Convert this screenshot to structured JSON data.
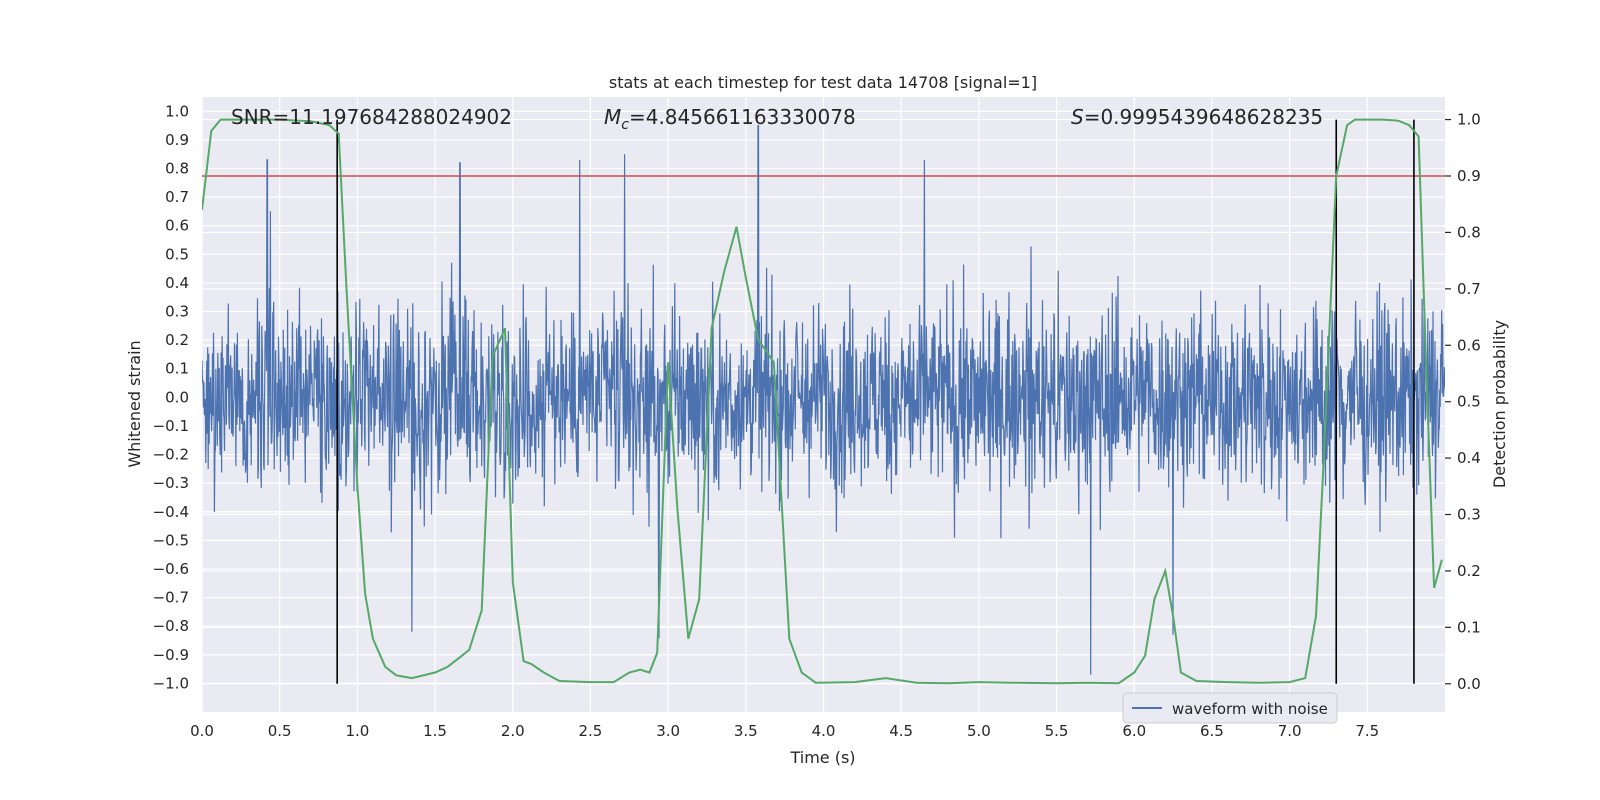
{
  "chart_data": {
    "type": "line",
    "title": "stats at each timestep for test data 14708 [signal=1]",
    "xlabel": "Time (s)",
    "ylabel": "Whitened strain",
    "y2label": "Detection probability",
    "xlim": [
      0.0,
      8.0
    ],
    "ylim": [
      -1.1,
      1.05
    ],
    "y2lim": [
      -0.05,
      1.04
    ],
    "x_ticks": [
      0.0,
      0.5,
      1.0,
      1.5,
      2.0,
      2.5,
      3.0,
      3.5,
      4.0,
      4.5,
      5.0,
      5.5,
      6.0,
      6.5,
      7.0,
      7.5
    ],
    "x_tick_labels": [
      "0.0",
      "0.5",
      "1.0",
      "1.5",
      "2.0",
      "2.5",
      "3.0",
      "3.5",
      "4.0",
      "4.5",
      "5.0",
      "5.5",
      "6.0",
      "6.5",
      "7.0",
      "7.5"
    ],
    "y_ticks": [
      1.0,
      0.9,
      0.8,
      0.7,
      0.6,
      0.5,
      0.4,
      0.3,
      0.2,
      0.1,
      0.0,
      -0.1,
      -0.2,
      -0.3,
      -0.4,
      -0.5,
      -0.6,
      -0.7,
      -0.8,
      -0.9,
      -1.0
    ],
    "y_tick_labels": [
      "1.0",
      "0.9",
      "0.8",
      "0.7",
      "0.6",
      "0.5",
      "0.4",
      "0.3",
      "0.2",
      "0.1",
      "0.0",
      "−0.1",
      "−0.2",
      "−0.3",
      "−0.4",
      "−0.5",
      "−0.6",
      "−0.7",
      "−0.8",
      "−0.9",
      "−1.0"
    ],
    "y2_ticks": [
      1.0,
      0.9,
      0.8,
      0.7,
      0.6,
      0.5,
      0.4,
      0.3,
      0.2,
      0.1,
      0.0
    ],
    "y2_tick_labels": [
      "1.0",
      "0.9",
      "0.8",
      "0.7",
      "0.6",
      "0.5",
      "0.4",
      "0.3",
      "0.2",
      "0.1",
      "0.0"
    ],
    "grid": true,
    "legend_position": "lower-right",
    "annotations": {
      "snr": "SNR=11.197684288024902",
      "mc_symbol": "M",
      "mc_subscript": "c",
      "mc_value": "=4.845661163330078",
      "s_symbol": "S",
      "s_value": "=0.9995439648628235"
    },
    "series": [
      {
        "name": "waveform with noise",
        "axis": "left",
        "color": "#4c72b0",
        "style": "dense noise",
        "envelope_typical": [
          -0.42,
          0.43
        ],
        "peaks": [
          {
            "x": 0.42,
            "y": 0.83
          },
          {
            "x": 1.66,
            "y": 0.82
          },
          {
            "x": 2.43,
            "y": 0.83
          },
          {
            "x": 2.72,
            "y": 0.85
          },
          {
            "x": 3.58,
            "y": 0.95
          },
          {
            "x": 4.65,
            "y": 0.83
          },
          {
            "x": 1.35,
            "y": -0.82
          },
          {
            "x": 2.94,
            "y": -0.84
          },
          {
            "x": 5.72,
            "y": -0.97
          },
          {
            "x": 6.25,
            "y": -0.83
          }
        ]
      },
      {
        "name": "detection probability",
        "axis": "right",
        "color": "#55a868",
        "x": [
          0.0,
          0.06,
          0.12,
          0.3,
          0.5,
          0.7,
          0.82,
          0.88,
          0.93,
          1.0,
          1.05,
          1.1,
          1.18,
          1.25,
          1.35,
          1.5,
          1.58,
          1.65,
          1.72,
          1.8,
          1.87,
          1.95,
          2.0,
          2.07,
          2.12,
          2.2,
          2.3,
          2.5,
          2.65,
          2.75,
          2.82,
          2.88,
          2.93,
          3.0,
          3.06,
          3.13,
          3.2,
          3.28,
          3.36,
          3.44,
          3.5,
          3.58,
          3.68,
          3.78,
          3.86,
          3.95,
          4.2,
          4.4,
          4.6,
          4.8,
          5.0,
          5.2,
          5.5,
          5.7,
          5.9,
          6.0,
          6.07,
          6.13,
          6.2,
          6.25,
          6.3,
          6.4,
          6.6,
          6.8,
          7.0,
          7.1,
          7.17,
          7.22,
          7.3,
          7.37,
          7.42,
          7.5,
          7.6,
          7.7,
          7.77,
          7.83,
          7.88,
          7.93,
          7.98
        ],
        "values": [
          0.84,
          0.98,
          1.0,
          1.0,
          1.0,
          0.997,
          0.99,
          0.975,
          0.7,
          0.35,
          0.16,
          0.08,
          0.03,
          0.015,
          0.01,
          0.02,
          0.03,
          0.045,
          0.06,
          0.13,
          0.58,
          0.63,
          0.18,
          0.04,
          0.035,
          0.02,
          0.005,
          0.003,
          0.003,
          0.02,
          0.025,
          0.02,
          0.055,
          0.57,
          0.31,
          0.08,
          0.15,
          0.63,
          0.73,
          0.81,
          0.72,
          0.61,
          0.57,
          0.08,
          0.02,
          0.002,
          0.003,
          0.01,
          0.002,
          0.001,
          0.003,
          0.002,
          0.001,
          0.002,
          0.001,
          0.02,
          0.05,
          0.15,
          0.2,
          0.12,
          0.02,
          0.005,
          0.003,
          0.002,
          0.003,
          0.01,
          0.12,
          0.4,
          0.9,
          0.99,
          1.0,
          1.0,
          1.0,
          0.998,
          0.99,
          0.97,
          0.55,
          0.17,
          0.22
        ]
      }
    ],
    "threshold": {
      "axis": "right",
      "value": 0.9,
      "color": "#c44e52"
    },
    "vertical_markers": {
      "color": "#000000",
      "x": [
        0.87,
        7.3,
        7.8
      ],
      "from": 0.0,
      "to": 1.0
    }
  }
}
